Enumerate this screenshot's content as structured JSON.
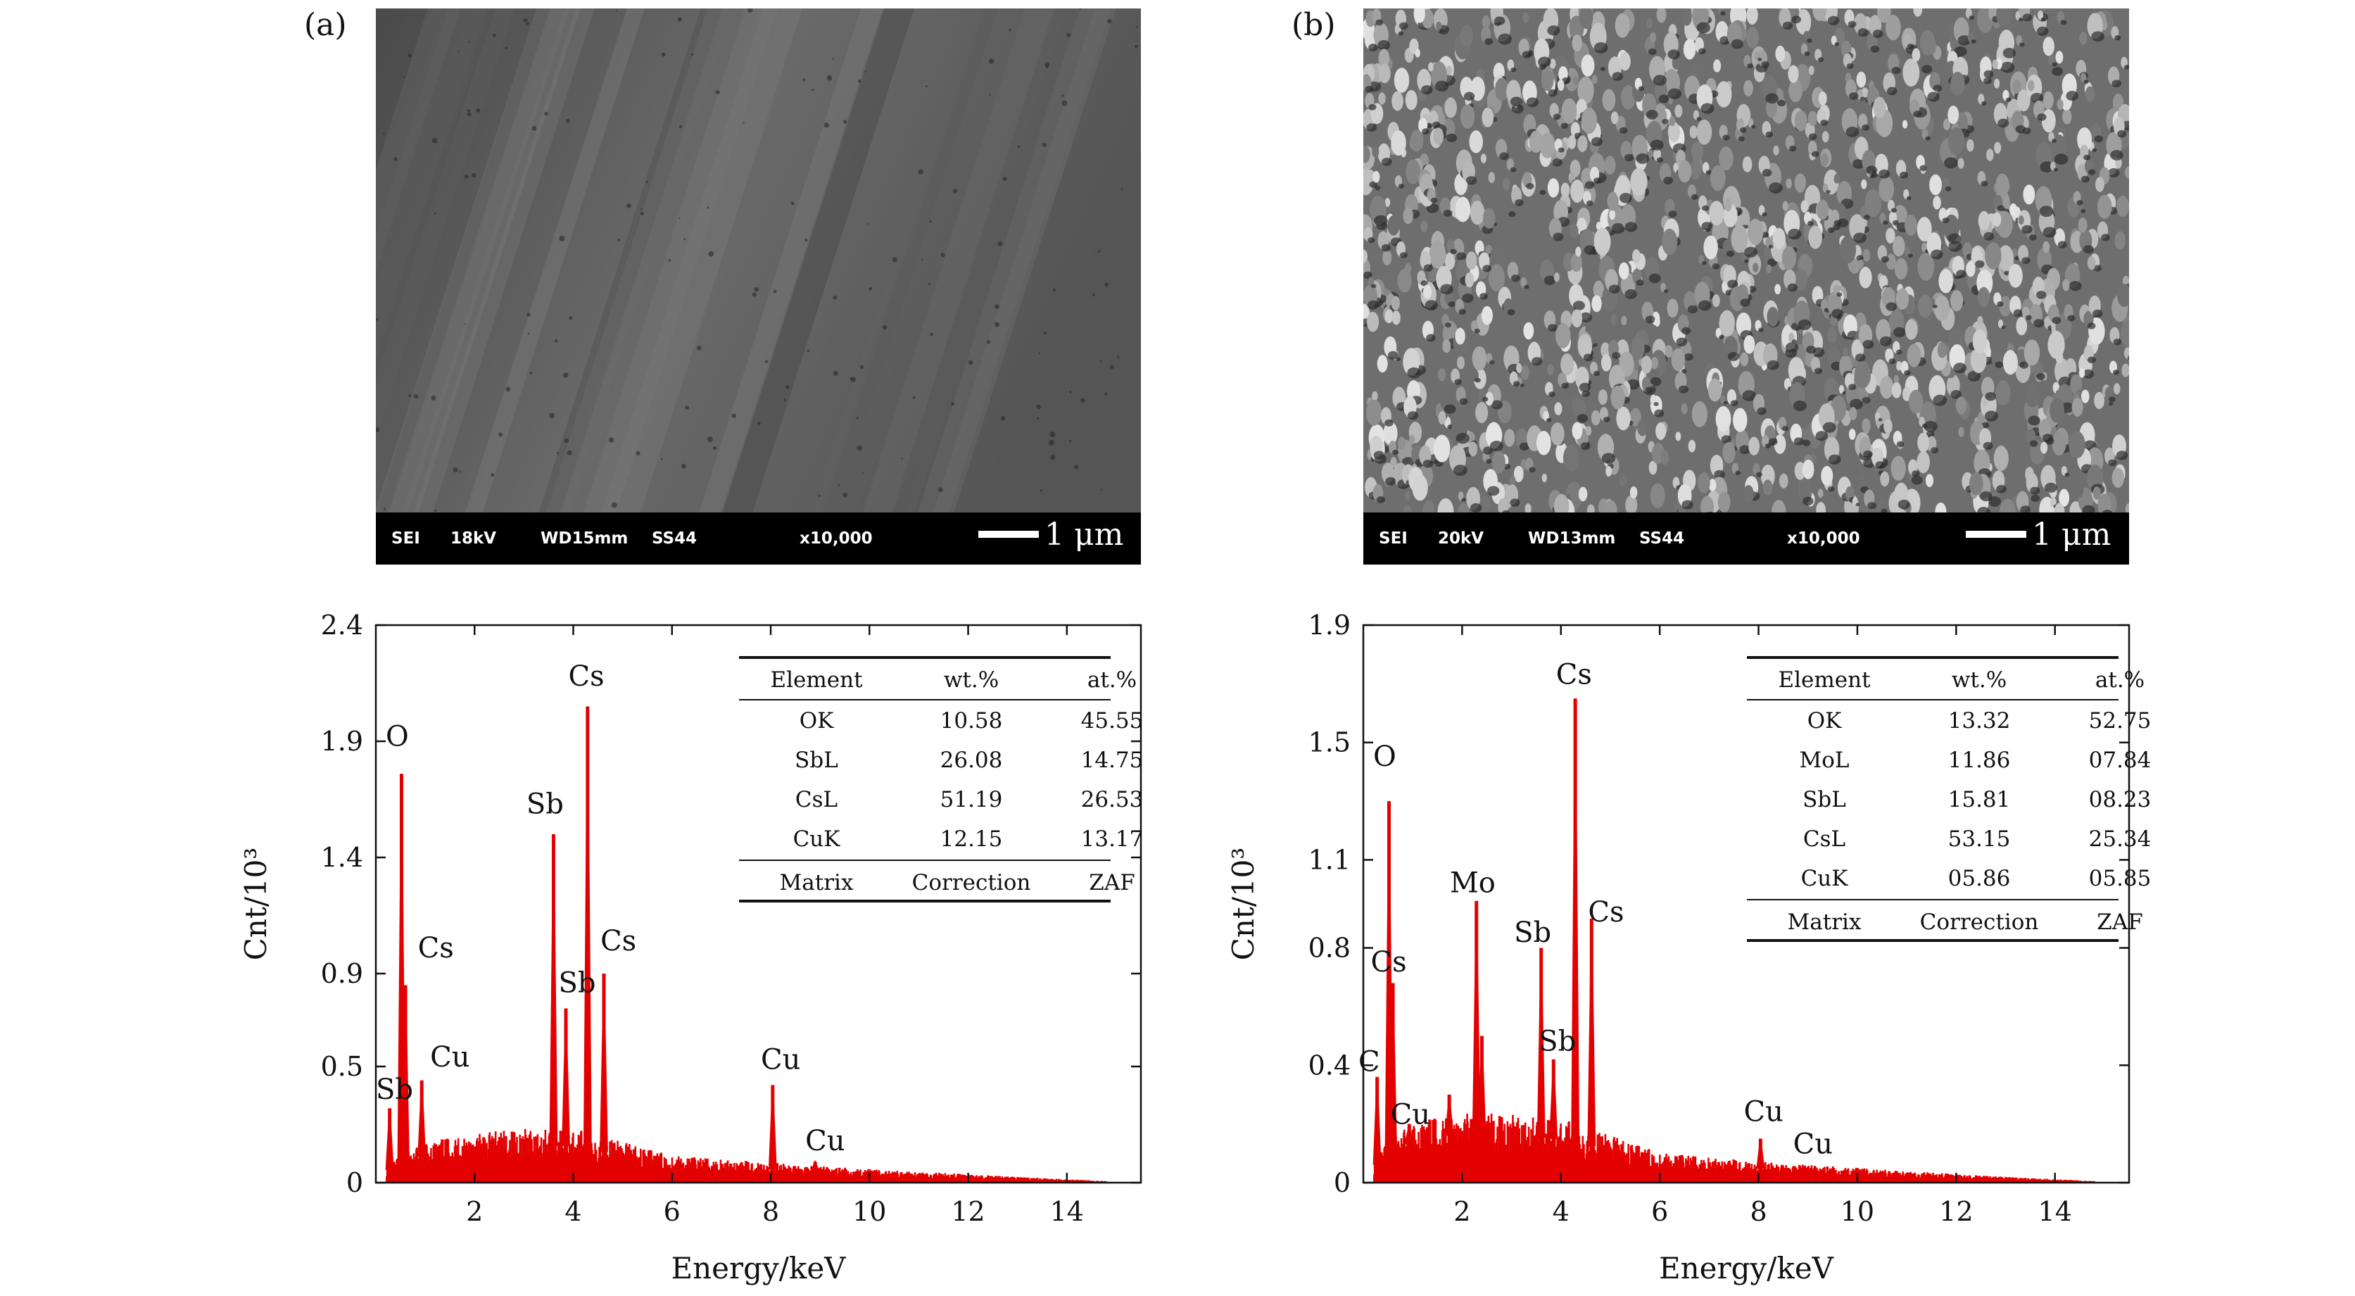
{
  "panels": [
    {
      "label": "(a)",
      "sem": {
        "mode": "SEI",
        "kv": "18kV",
        "wd": "WD15mm",
        "ss": "SS44",
        "mag": "x10,000",
        "scale": "1 μm"
      }
    },
    {
      "label": "(b)",
      "sem": {
        "mode": "SEI",
        "kv": "20kV",
        "wd": "WD13mm",
        "ss": "SS44",
        "mag": "x10,000",
        "scale": "1 μm"
      }
    }
  ],
  "colors": {
    "spectrum": "#e30000",
    "sem_bg": "#3d3d3d"
  },
  "chart_data": [
    {
      "type": "bar",
      "title": "",
      "xlabel": "Energy/keV",
      "ylabel": "Cnt/10³",
      "xlim": [
        0,
        15.5
      ],
      "ylim": [
        0,
        2.4
      ],
      "xticks": [
        2,
        4,
        6,
        8,
        10,
        12,
        14
      ],
      "yticks": [
        0,
        0.5,
        0.9,
        1.4,
        1.9,
        2.4
      ],
      "ytick_labels": [
        "0",
        "0.5",
        "0.9",
        "1.4",
        "1.9",
        "2.4"
      ],
      "peaks": [
        {
          "x": 0.28,
          "y": 0.32
        },
        {
          "x": 0.52,
          "y": 1.76
        },
        {
          "x": 0.6,
          "y": 0.85
        },
        {
          "x": 0.93,
          "y": 0.44
        },
        {
          "x": 3.6,
          "y": 1.5
        },
        {
          "x": 3.85,
          "y": 0.75
        },
        {
          "x": 4.29,
          "y": 2.05
        },
        {
          "x": 4.62,
          "y": 0.9
        },
        {
          "x": 8.04,
          "y": 0.42
        },
        {
          "x": 8.9,
          "y": 0.09
        }
      ],
      "background": [
        [
          0.2,
          0.05
        ],
        [
          0.5,
          0.08
        ],
        [
          1.0,
          0.12
        ],
        [
          2.0,
          0.15
        ],
        [
          3.0,
          0.16
        ],
        [
          4.0,
          0.16
        ],
        [
          5.0,
          0.12
        ],
        [
          6.0,
          0.08
        ],
        [
          8.0,
          0.06
        ],
        [
          10.0,
          0.04
        ],
        [
          12.0,
          0.025
        ],
        [
          14.0,
          0.01
        ],
        [
          14.8,
          0.005
        ]
      ],
      "annotations": [
        {
          "text": "O",
          "x": 0.2,
          "y": 1.88
        },
        {
          "text": "Cs",
          "x": 0.85,
          "y": 0.97
        },
        {
          "text": "Cu",
          "x": 1.1,
          "y": 0.5
        },
        {
          "text": "Sb",
          "x": 0.0,
          "y": 0.36
        },
        {
          "text": "Sb",
          "x": 3.05,
          "y": 1.59
        },
        {
          "text": "Sb",
          "x": 3.7,
          "y": 0.82
        },
        {
          "text": "Cs",
          "x": 3.9,
          "y": 2.14
        },
        {
          "text": "Cs",
          "x": 4.55,
          "y": 1.0
        },
        {
          "text": "Cu",
          "x": 7.8,
          "y": 0.49
        },
        {
          "text": "Cu",
          "x": 8.7,
          "y": 0.14
        }
      ],
      "table": {
        "headers": [
          "Element",
          "wt.%",
          "at.%"
        ],
        "rows": [
          [
            "OK",
            "10.58",
            "45.55"
          ],
          [
            "SbL",
            "26.08",
            "14.75"
          ],
          [
            "CsL",
            "51.19",
            "26.53"
          ],
          [
            "CuK",
            "12.15",
            "13.17"
          ]
        ],
        "footer": [
          "Matrix",
          "Correction",
          "ZAF"
        ]
      }
    },
    {
      "type": "bar",
      "title": "",
      "xlabel": "Energy/keV",
      "ylabel": "Cnt/10³",
      "xlim": [
        0,
        15.5
      ],
      "ylim": [
        0,
        1.9
      ],
      "xticks": [
        2,
        4,
        6,
        8,
        10,
        12,
        14
      ],
      "yticks": [
        0,
        0.4,
        0.8,
        1.1,
        1.5,
        1.9
      ],
      "ytick_labels": [
        "0",
        "0.4",
        "0.8",
        "1.1",
        "1.5",
        "1.9"
      ],
      "peaks": [
        {
          "x": 0.28,
          "y": 0.36
        },
        {
          "x": 0.52,
          "y": 1.3
        },
        {
          "x": 0.6,
          "y": 0.68
        },
        {
          "x": 0.93,
          "y": 0.2
        },
        {
          "x": 1.74,
          "y": 0.3
        },
        {
          "x": 2.29,
          "y": 0.96
        },
        {
          "x": 2.4,
          "y": 0.5
        },
        {
          "x": 3.6,
          "y": 0.8
        },
        {
          "x": 3.85,
          "y": 0.42
        },
        {
          "x": 4.29,
          "y": 1.65
        },
        {
          "x": 4.62,
          "y": 0.9
        },
        {
          "x": 8.04,
          "y": 0.15
        },
        {
          "x": 8.9,
          "y": 0.05
        }
      ],
      "background": [
        [
          0.2,
          0.05
        ],
        [
          0.5,
          0.1
        ],
        [
          1.0,
          0.14
        ],
        [
          2.0,
          0.17
        ],
        [
          3.0,
          0.16
        ],
        [
          4.0,
          0.15
        ],
        [
          5.0,
          0.11
        ],
        [
          6.0,
          0.07
        ],
        [
          8.0,
          0.05
        ],
        [
          10.0,
          0.035
        ],
        [
          12.0,
          0.02
        ],
        [
          14.0,
          0.008
        ],
        [
          14.8,
          0.004
        ]
      ],
      "annotations": [
        {
          "text": "O",
          "x": 0.2,
          "y": 1.42
        },
        {
          "text": "Cs",
          "x": 0.15,
          "y": 0.72
        },
        {
          "text": "C",
          "x": -0.1,
          "y": 0.38
        },
        {
          "text": "Cu",
          "x": 0.55,
          "y": 0.2
        },
        {
          "text": "Mo",
          "x": 1.75,
          "y": 0.99
        },
        {
          "text": "Sb",
          "x": 3.05,
          "y": 0.82
        },
        {
          "text": "Sb",
          "x": 3.55,
          "y": 0.45
        },
        {
          "text": "Cs",
          "x": 3.9,
          "y": 1.7
        },
        {
          "text": "Cs",
          "x": 4.55,
          "y": 0.89
        },
        {
          "text": "Cu",
          "x": 7.7,
          "y": 0.21
        },
        {
          "text": "Cu",
          "x": 8.7,
          "y": 0.1
        }
      ],
      "table": {
        "headers": [
          "Element",
          "wt.%",
          "at.%"
        ],
        "rows": [
          [
            "OK",
            "13.32",
            "52.75"
          ],
          [
            "MoL",
            "11.86",
            "07.84"
          ],
          [
            "SbL",
            "15.81",
            "08.23"
          ],
          [
            "CsL",
            "53.15",
            "25.34"
          ],
          [
            "CuK",
            "05.86",
            "05.85"
          ]
        ],
        "footer": [
          "Matrix",
          "Correction",
          "ZAF"
        ]
      }
    }
  ]
}
